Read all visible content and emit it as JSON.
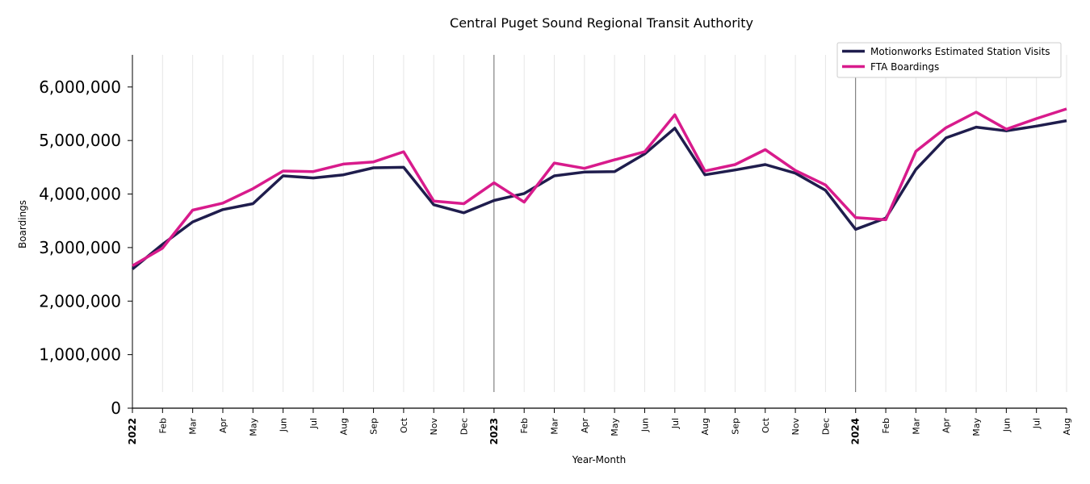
{
  "chart_data": {
    "type": "line",
    "title": "Central Puget Sound Regional Transit Authority",
    "xlabel": "Year-Month",
    "ylabel": "Boardings",
    "ylim": [
      0,
      6600000
    ],
    "yticks": [
      0,
      1000000,
      2000000,
      3000000,
      4000000,
      5000000,
      6000000
    ],
    "ytick_labels": [
      "0",
      "1,000,000",
      "2,000,000",
      "3,000,000",
      "4,000,000",
      "5,000,000",
      "6,000,000"
    ],
    "x": [
      "2022",
      "Feb",
      "Mar",
      "Apr",
      "May",
      "Jun",
      "Jul",
      "Aug",
      "Sep",
      "Oct",
      "Nov",
      "Dec",
      "2023",
      "Feb",
      "Mar",
      "Apr",
      "May",
      "Jun",
      "Jul",
      "Aug",
      "Sep",
      "Oct",
      "Nov",
      "Dec",
      "2024",
      "Feb",
      "Mar",
      "Apr",
      "May",
      "Jun",
      "Jul",
      "Aug"
    ],
    "year_ticks": [
      "2022",
      "2023",
      "2024"
    ],
    "grid": "vertical",
    "legend_position": "top-right",
    "series": [
      {
        "name": "Motionworks Estimated Station Visits",
        "color": "#1f1d4d",
        "values": [
          2600000,
          3060000,
          3480000,
          3710000,
          3820000,
          4340000,
          4300000,
          4360000,
          4490000,
          4500000,
          3800000,
          3650000,
          3880000,
          4010000,
          4340000,
          4410000,
          4420000,
          4750000,
          5230000,
          4360000,
          4450000,
          4550000,
          4390000,
          4070000,
          3340000,
          3550000,
          4460000,
          5050000,
          5250000,
          5180000,
          5270000,
          5370000
        ]
      },
      {
        "name": "FTA Boardings",
        "color": "#d81b8c",
        "values": [
          2660000,
          2990000,
          3700000,
          3830000,
          4100000,
          4430000,
          4420000,
          4560000,
          4600000,
          4790000,
          3870000,
          3820000,
          4210000,
          3850000,
          4580000,
          4480000,
          4640000,
          4790000,
          5480000,
          4430000,
          4550000,
          4830000,
          4440000,
          4170000,
          3560000,
          3520000,
          4800000,
          5240000,
          5530000,
          5210000,
          5410000,
          5590000
        ]
      }
    ]
  }
}
